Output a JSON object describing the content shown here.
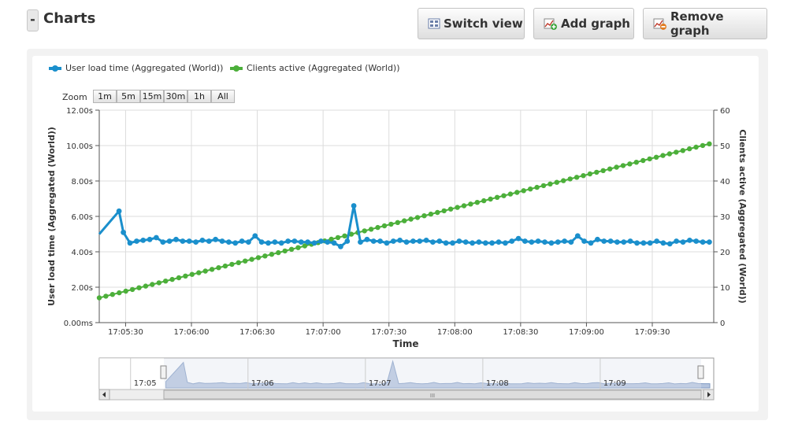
{
  "header": {
    "collapse_label": "-",
    "title": "Charts",
    "switch_view_label": "Switch view",
    "add_graph_label": "Add graph",
    "remove_graph_label": "Remove graph",
    "icons": [
      "grid-view-icon",
      "add-chart-icon",
      "remove-chart-icon"
    ]
  },
  "legend": [
    {
      "label": "User load time (Aggregated (World))",
      "color": "#1a8fcc"
    },
    {
      "label": "Clients active (Aggregated (World))",
      "color": "#4caf3a"
    }
  ],
  "zoom": {
    "label": "Zoom",
    "buttons": [
      "1m",
      "5m",
      "15m",
      "30m",
      "1h",
      "All"
    ]
  },
  "chart_data": {
    "type": "line",
    "xlabel": "Time",
    "x_ticks": [
      "17:05:30",
      "17:06:00",
      "17:06:30",
      "17:07:00",
      "17:07:30",
      "17:08:00",
      "17:08:30",
      "17:09:00",
      "17:09:30"
    ],
    "left_axis": {
      "label": "User load time (Aggregated (World))",
      "ticks": [
        "0.00ms",
        "2.00s",
        "4.00s",
        "6.00s",
        "8.00s",
        "10.00s",
        "12.00s"
      ],
      "ylim": [
        0,
        12
      ]
    },
    "right_axis": {
      "label": "Clients active (Aggregated (World))",
      "ticks": [
        "0",
        "10",
        "20",
        "30",
        "40",
        "50",
        "60"
      ],
      "ylim": [
        0,
        60
      ]
    },
    "grid": true,
    "series": [
      {
        "name": "User load time (Aggregated (World))",
        "axis": "left",
        "color": "#1a8fcc",
        "points": [
          [
            "17:05:18",
            5.0
          ],
          [
            "17:05:27",
            6.3
          ],
          [
            "17:05:29",
            5.1
          ],
          [
            "17:05:32",
            4.5
          ],
          [
            "17:05:35",
            4.6
          ],
          [
            "17:05:38",
            4.65
          ],
          [
            "17:05:41",
            4.7
          ],
          [
            "17:05:44",
            4.8
          ],
          [
            "17:05:47",
            4.55
          ],
          [
            "17:05:50",
            4.6
          ],
          [
            "17:05:53",
            4.7
          ],
          [
            "17:05:56",
            4.6
          ],
          [
            "17:05:59",
            4.6
          ],
          [
            "17:06:02",
            4.55
          ],
          [
            "17:06:05",
            4.65
          ],
          [
            "17:06:08",
            4.6
          ],
          [
            "17:06:11",
            4.7
          ],
          [
            "17:06:14",
            4.6
          ],
          [
            "17:06:17",
            4.55
          ],
          [
            "17:06:20",
            4.5
          ],
          [
            "17:06:23",
            4.6
          ],
          [
            "17:06:26",
            4.55
          ],
          [
            "17:06:29",
            4.9
          ],
          [
            "17:06:32",
            4.55
          ],
          [
            "17:06:35",
            4.5
          ],
          [
            "17:06:38",
            4.55
          ],
          [
            "17:06:41",
            4.5
          ],
          [
            "17:06:44",
            4.6
          ],
          [
            "17:06:47",
            4.6
          ],
          [
            "17:06:50",
            4.55
          ],
          [
            "17:06:53",
            4.55
          ],
          [
            "17:06:56",
            4.5
          ],
          [
            "17:06:59",
            4.6
          ],
          [
            "17:07:02",
            4.55
          ],
          [
            "17:07:05",
            4.5
          ],
          [
            "17:07:08",
            4.3
          ],
          [
            "17:07:11",
            4.6
          ],
          [
            "17:07:14",
            6.6
          ],
          [
            "17:07:17",
            4.55
          ],
          [
            "17:07:20",
            4.7
          ],
          [
            "17:07:23",
            4.6
          ],
          [
            "17:07:26",
            4.6
          ],
          [
            "17:07:29",
            4.5
          ],
          [
            "17:07:32",
            4.6
          ],
          [
            "17:07:35",
            4.65
          ],
          [
            "17:07:38",
            4.55
          ],
          [
            "17:07:41",
            4.6
          ],
          [
            "17:07:44",
            4.6
          ],
          [
            "17:07:47",
            4.65
          ],
          [
            "17:07:50",
            4.55
          ],
          [
            "17:07:53",
            4.6
          ],
          [
            "17:07:56",
            4.5
          ],
          [
            "17:07:59",
            4.5
          ],
          [
            "17:08:02",
            4.6
          ],
          [
            "17:08:05",
            4.55
          ],
          [
            "17:08:08",
            4.5
          ],
          [
            "17:08:11",
            4.55
          ],
          [
            "17:08:14",
            4.5
          ],
          [
            "17:08:17",
            4.5
          ],
          [
            "17:08:20",
            4.55
          ],
          [
            "17:08:23",
            4.5
          ],
          [
            "17:08:26",
            4.6
          ],
          [
            "17:08:29",
            4.75
          ],
          [
            "17:08:32",
            4.6
          ],
          [
            "17:08:35",
            4.55
          ],
          [
            "17:08:38",
            4.6
          ],
          [
            "17:08:41",
            4.55
          ],
          [
            "17:08:44",
            4.5
          ],
          [
            "17:08:47",
            4.55
          ],
          [
            "17:08:50",
            4.6
          ],
          [
            "17:08:53",
            4.55
          ],
          [
            "17:08:56",
            4.9
          ],
          [
            "17:08:59",
            4.6
          ],
          [
            "17:09:02",
            4.5
          ],
          [
            "17:09:05",
            4.7
          ],
          [
            "17:09:08",
            4.6
          ],
          [
            "17:09:11",
            4.6
          ],
          [
            "17:09:14",
            4.55
          ],
          [
            "17:09:17",
            4.55
          ],
          [
            "17:09:20",
            4.6
          ],
          [
            "17:09:23",
            4.5
          ],
          [
            "17:09:26",
            4.5
          ],
          [
            "17:09:29",
            4.5
          ],
          [
            "17:09:32",
            4.6
          ],
          [
            "17:09:35",
            4.5
          ],
          [
            "17:09:38",
            4.45
          ],
          [
            "17:09:41",
            4.6
          ],
          [
            "17:09:44",
            4.55
          ],
          [
            "17:09:47",
            4.65
          ],
          [
            "17:09:50",
            4.6
          ],
          [
            "17:09:53",
            4.55
          ],
          [
            "17:09:56",
            4.55
          ]
        ]
      },
      {
        "name": "Clients active (Aggregated (World))",
        "axis": "right",
        "color": "#4caf3a",
        "start": "17:05:18",
        "end": "17:09:56",
        "from": 7,
        "to": 50.5,
        "count": 93
      }
    ]
  },
  "navigator": {
    "labels": [
      "17:05",
      "17:06",
      "17:07",
      "17:08",
      "17:09"
    ],
    "scroll_label": "III",
    "series_color": "#9fb4d6",
    "spikes": [
      [
        "17:05:28",
        6.3
      ],
      [
        "17:07:14",
        6.6
      ]
    ]
  }
}
